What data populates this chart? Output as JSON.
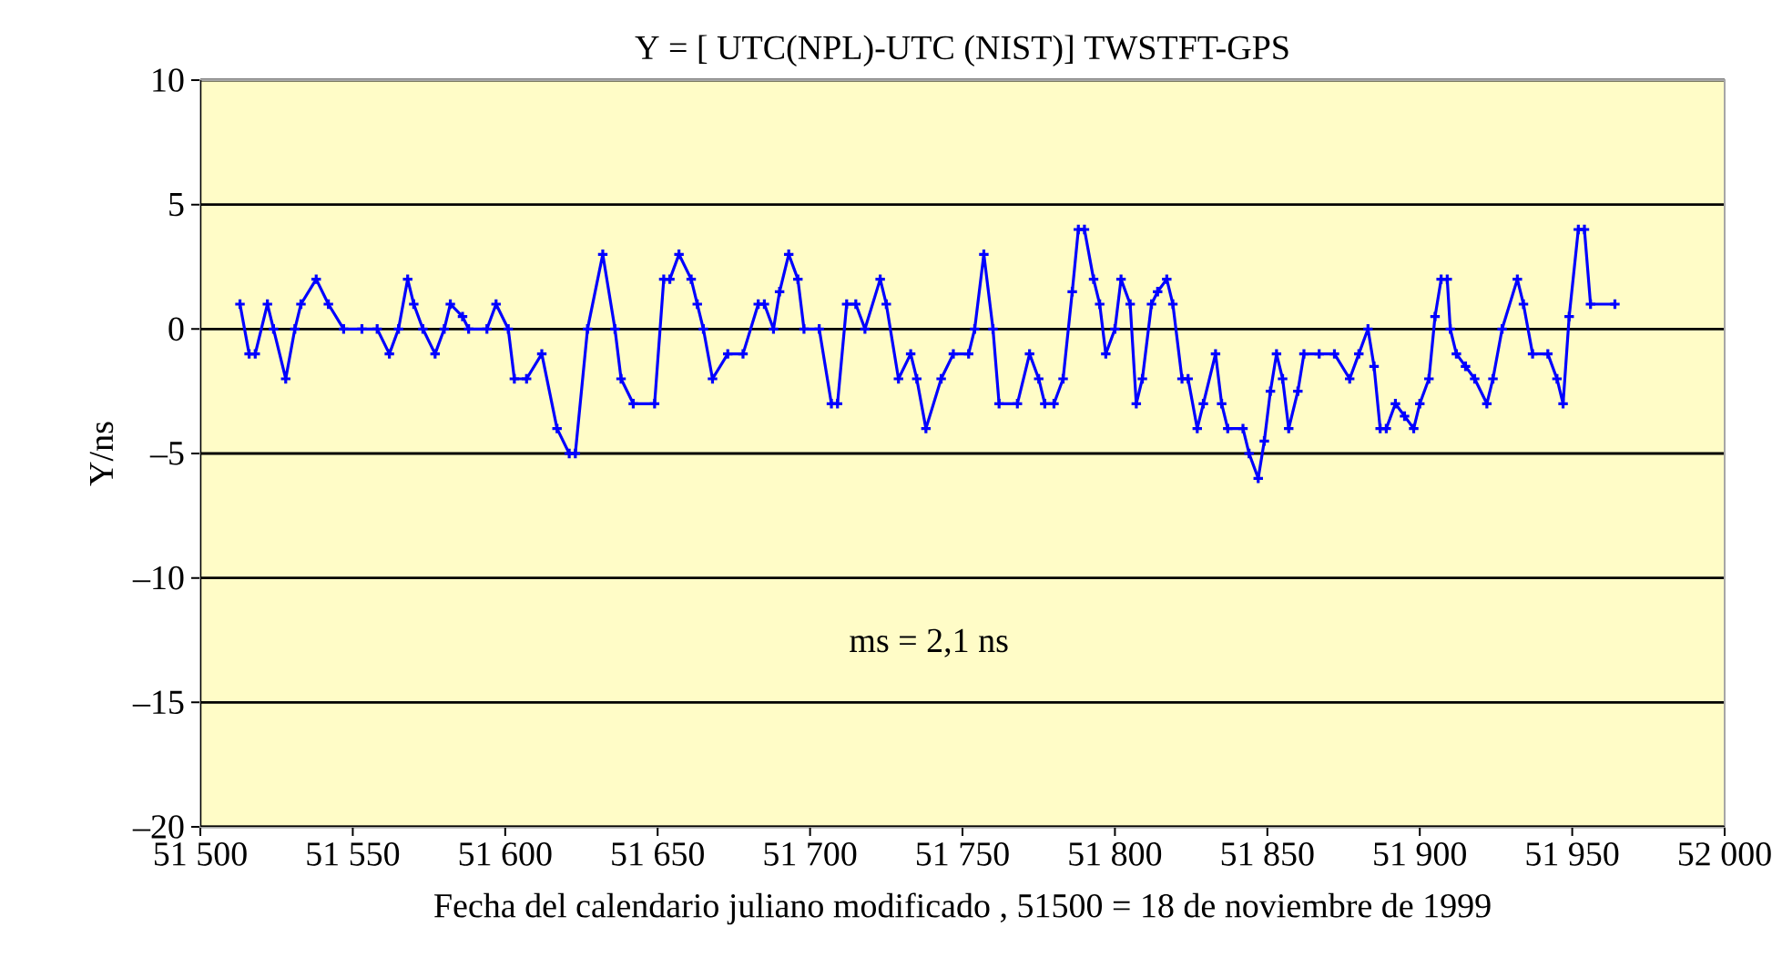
{
  "chart_data": {
    "type": "line",
    "title": "Y = [ UTC(NPL)-UTC (NIST)]   TWSTFT-GPS",
    "xlabel": "Fecha del calendario juliano modificado , 51500 = 18 de noviembre de 1999",
    "ylabel": "Y/ns",
    "annotations": [
      "ms = 2,1 ns"
    ],
    "x": [
      51513,
      51516,
      51518,
      51522,
      51524,
      51528,
      51531,
      51533,
      51538,
      51542,
      51547,
      51553,
      51558,
      51562,
      51565,
      51568,
      51570,
      51573,
      51577,
      51580,
      51582,
      51586,
      51588,
      51594,
      51597,
      51601,
      51603,
      51607,
      51612,
      51617,
      51621,
      51623,
      51627,
      51632,
      51636,
      51638,
      51642,
      51649,
      51652,
      51654,
      51657,
      51661,
      51663,
      51665,
      51668,
      51673,
      51678,
      51683,
      51685,
      51688,
      51690,
      51693,
      51696,
      51698,
      51703,
      51707,
      51709,
      51712,
      51715,
      51718,
      51723,
      51725,
      51729,
      51733,
      51735,
      51738,
      51743,
      51747,
      51752,
      51754,
      51757,
      51760,
      51762,
      51768,
      51772,
      51775,
      51777,
      51780,
      51783,
      51786,
      51788,
      51790,
      51793,
      51795,
      51797,
      51800,
      51802,
      51805,
      51807,
      51809,
      51812,
      51814,
      51817,
      51819,
      51822,
      51824,
      51827,
      51829,
      51833,
      51835,
      51837,
      51842,
      51844,
      51847,
      51849,
      51851,
      51853,
      51855,
      51857,
      51860,
      51862,
      51867,
      51872,
      51877,
      51880,
      51883,
      51885,
      51887,
      51889,
      51892,
      51895,
      51898,
      51900,
      51903,
      51905,
      51907,
      51909,
      51910,
      51912,
      51915,
      51918,
      51922,
      51924,
      51927,
      51932,
      51934,
      51937,
      51942,
      51945,
      51947,
      51949,
      51952,
      51954,
      51956,
      51964
    ],
    "series": [
      {
        "color": "#0000ff",
        "values": [
          1,
          -1,
          -1,
          1,
          0,
          -2,
          0,
          1,
          2,
          1,
          0,
          0,
          0,
          -1,
          0,
          2,
          1,
          0,
          -1,
          0,
          1,
          0.5,
          0,
          0,
          1,
          0,
          -2,
          -2,
          -1,
          -4,
          -5,
          -5,
          0,
          3,
          0,
          -2,
          -3,
          -3,
          2,
          2,
          3,
          2,
          1,
          0,
          -2,
          -1,
          -1,
          1,
          1,
          0,
          1.5,
          3,
          2,
          0,
          0,
          -3,
          -3,
          1,
          1,
          0,
          2,
          1,
          -2,
          -1,
          -2,
          -4,
          -2,
          -1,
          -1,
          0,
          3,
          0,
          -3,
          -3,
          -1,
          -2,
          -3,
          -3,
          -2,
          1.5,
          4,
          4,
          2,
          1,
          -1,
          0,
          2,
          1,
          -3,
          -2,
          1,
          1.5,
          2,
          1,
          -2,
          -2,
          -4,
          -3,
          -1,
          -3,
          -4,
          -4,
          -5,
          -6,
          -4.5,
          -2.5,
          -1,
          -2,
          -4,
          -2.5,
          -1,
          -1,
          -1,
          -2,
          -1,
          0,
          -1.5,
          -4,
          -4,
          -3,
          -3.5,
          -4,
          -3,
          -2,
          0.5,
          2,
          2,
          0,
          -1,
          -1.5,
          -2,
          -3,
          -2,
          0,
          2,
          1,
          -1,
          -1,
          -2,
          -3,
          0.5,
          4,
          4,
          1,
          1
        ]
      }
    ],
    "xlim": [
      51500,
      52000
    ],
    "xticks": [
      {
        "value": 51500,
        "label": "51 500"
      },
      {
        "value": 51550,
        "label": "51 550"
      },
      {
        "value": 51600,
        "label": "51 600"
      },
      {
        "value": 51650,
        "label": "51 650"
      },
      {
        "value": 51700,
        "label": "51 700"
      },
      {
        "value": 51750,
        "label": "51 750"
      },
      {
        "value": 51800,
        "label": "51 800"
      },
      {
        "value": 51850,
        "label": "51 850"
      },
      {
        "value": 51900,
        "label": "51 900"
      },
      {
        "value": 51950,
        "label": "51 950"
      },
      {
        "value": 52000,
        "label": "52 000"
      }
    ],
    "ylim": [
      -20,
      10
    ],
    "yticks": [
      {
        "value": -20,
        "label": "–20"
      },
      {
        "value": -15,
        "label": "–15"
      },
      {
        "value": -10,
        "label": "–10"
      },
      {
        "value": -5,
        "label": "–5"
      },
      0,
      5,
      10
    ],
    "grid": "y",
    "marker": "cross",
    "line_style": "solid"
  }
}
